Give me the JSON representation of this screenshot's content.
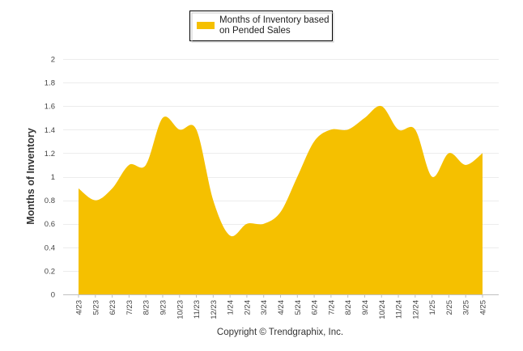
{
  "chart_data": {
    "type": "area",
    "legend": {
      "placement": "top-center",
      "entries": [
        {
          "label_line1": "Months of Inventory based",
          "label_line2": "on Pended Sales",
          "color": "#F5C000"
        }
      ]
    },
    "ylabel": "Months of Inventory",
    "xlabel": "",
    "ylim": [
      0,
      2
    ],
    "y_ticks": [
      "0",
      "0.2",
      "0.4",
      "0.6",
      "0.8",
      "1",
      "1.2",
      "1.4",
      "1.6",
      "1.8",
      "2"
    ],
    "grid": true,
    "categories": [
      "4/23",
      "5/23",
      "6/23",
      "7/23",
      "8/23",
      "9/23",
      "10/23",
      "11/23",
      "12/23",
      "1/24",
      "2/24",
      "3/24",
      "4/24",
      "5/24",
      "6/24",
      "7/24",
      "8/24",
      "9/24",
      "10/24",
      "11/24",
      "12/24",
      "1/25",
      "2/25",
      "3/25",
      "4/25"
    ],
    "series": [
      {
        "name": "Months of Inventory based on Pended Sales",
        "color": "#F5C000",
        "values": [
          0.9,
          0.8,
          0.9,
          1.1,
          1.1,
          1.5,
          1.4,
          1.4,
          0.8,
          0.5,
          0.6,
          0.6,
          0.7,
          1.0,
          1.3,
          1.4,
          1.4,
          1.5,
          1.6,
          1.4,
          1.4,
          1.0,
          1.2,
          1.1,
          1.2
        ]
      }
    ]
  },
  "footer": {
    "copyright": "Copyright © Trendgraphix, Inc."
  }
}
